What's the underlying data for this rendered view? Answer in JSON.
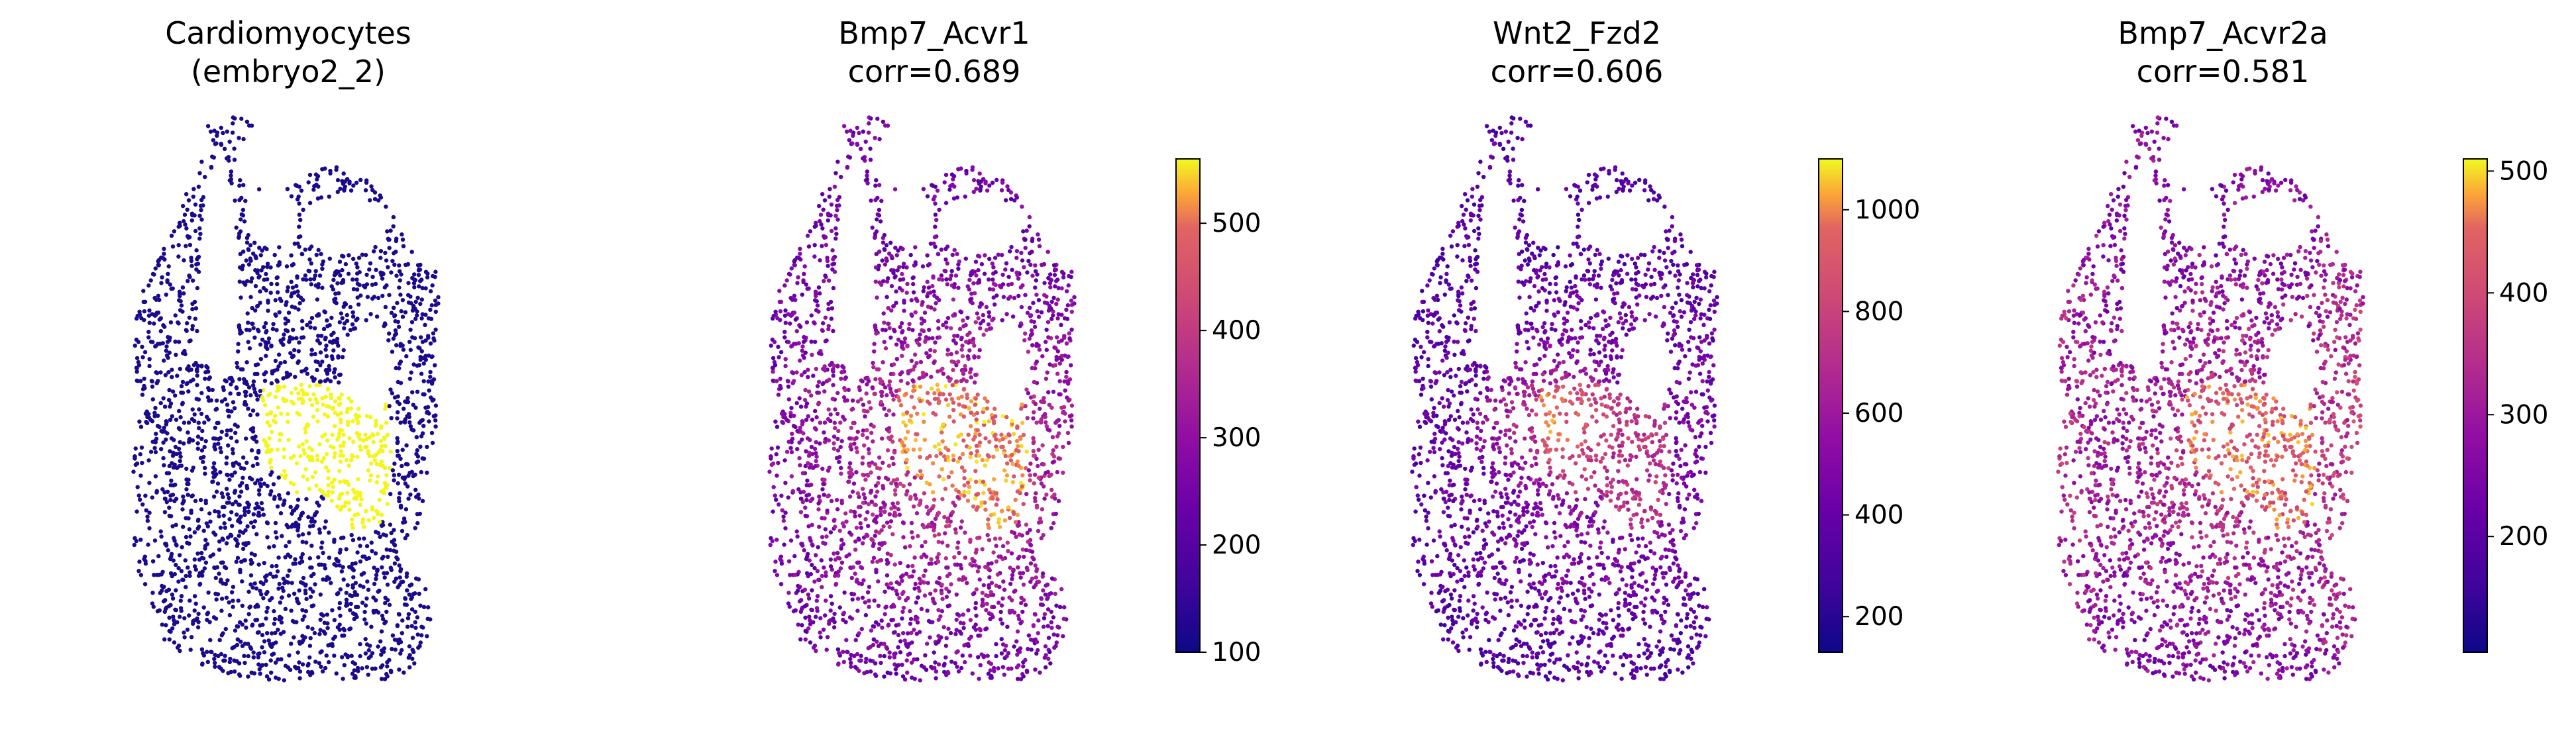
{
  "chart_data": [
    {
      "type": "scatter",
      "title_line1": "Cardiomyocytes",
      "title_line2": "(embryo2_2)",
      "color_scale": "categorical",
      "highlight_color": "#F5F51E",
      "background_color": "#1A0A8C",
      "colorbar": false
    },
    {
      "type": "scatter",
      "title_line1": "Bmp7_Acvr1",
      "title_line2": "corr=0.689",
      "color_scale": "plasma",
      "colorbar": true,
      "vmin": 100,
      "vmax": 560,
      "ticks": [
        100,
        200,
        300,
        400,
        500
      ]
    },
    {
      "type": "scatter",
      "title_line1": "Wnt2_Fzd2",
      "title_line2": "corr=0.606",
      "color_scale": "plasma",
      "colorbar": true,
      "vmin": 130,
      "vmax": 1100,
      "ticks": [
        200,
        400,
        600,
        800,
        1000
      ]
    },
    {
      "type": "scatter",
      "title_line1": "Bmp7_Acvr2a",
      "title_line2": "corr=0.581",
      "color_scale": "plasma",
      "colorbar": true,
      "vmin": 105,
      "vmax": 510,
      "ticks": [
        200,
        300,
        400,
        500
      ]
    }
  ]
}
